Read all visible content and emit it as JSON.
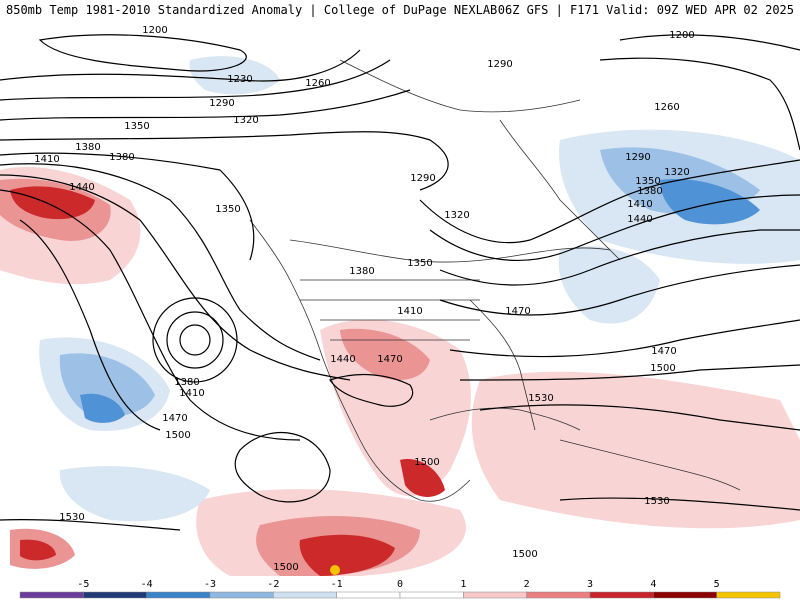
{
  "header": {
    "left": "850mb Temp 1981-2010 Standardized Anomaly | College of DuPage NEXLAB",
    "right": "06Z GFS | F171 Valid: 09Z WED APR 02 2025"
  },
  "legend": {
    "ticks": [
      "-5",
      "-4",
      "-3",
      "-2",
      "-1",
      "0",
      "1",
      "2",
      "3",
      "4",
      "5"
    ],
    "colors": [
      "#6a3d9a",
      "#1f3a75",
      "#3b83c9",
      "#8fb8e0",
      "#cfe0f2",
      "#ffffff",
      "#ffffff",
      "#f6c8c8",
      "#e9807f",
      "#c8242c",
      "#8b0000",
      "#f5c400"
    ]
  },
  "contour_labels": [
    "1200",
    "1230",
    "1260",
    "1290",
    "1320",
    "1350",
    "1380",
    "1410",
    "1440",
    "1470",
    "1500",
    "1530"
  ],
  "map_colors": {
    "positive_light": "#f8d4d4",
    "positive_mid": "#eb9494",
    "positive_strong": "#cc2a2a",
    "negative_light": "#d9e6f4",
    "negative_mid": "#9cc0e6",
    "negative_strong": "#4f93d6",
    "coast": "#333333",
    "contour": "#000000"
  }
}
